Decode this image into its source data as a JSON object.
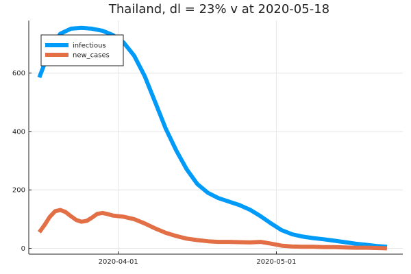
{
  "chart_data": {
    "type": "line",
    "title": "Thailand,  dl = 23% v at 2020-05-18",
    "xlabel": "",
    "ylabel": "",
    "x_start": "2020-03-17",
    "x_end": "2020-05-23",
    "xlim": [
      "2020-03-15",
      "2020-05-25"
    ],
    "ylim": [
      -20,
      780
    ],
    "x_ticks": [
      "2020-04-01",
      "2020-05-01"
    ],
    "y_ticks": [
      0,
      200,
      400,
      600
    ],
    "grid": true,
    "legend_position": "top-left",
    "series": [
      {
        "name": "infectious",
        "color": "#009af9",
        "points": [
          [
            "2020-03-17",
            585
          ],
          [
            "2020-03-19",
            680
          ],
          [
            "2020-03-21",
            735
          ],
          [
            "2020-03-23",
            752
          ],
          [
            "2020-03-25",
            755
          ],
          [
            "2020-03-27",
            752
          ],
          [
            "2020-03-29",
            745
          ],
          [
            "2020-03-31",
            730
          ],
          [
            "2020-04-02",
            705
          ],
          [
            "2020-04-04",
            660
          ],
          [
            "2020-04-06",
            590
          ],
          [
            "2020-04-08",
            500
          ],
          [
            "2020-04-10",
            410
          ],
          [
            "2020-04-12",
            335
          ],
          [
            "2020-04-14",
            270
          ],
          [
            "2020-04-16",
            220
          ],
          [
            "2020-04-18",
            190
          ],
          [
            "2020-04-20",
            172
          ],
          [
            "2020-04-22",
            160
          ],
          [
            "2020-04-24",
            148
          ],
          [
            "2020-04-26",
            132
          ],
          [
            "2020-04-28",
            110
          ],
          [
            "2020-04-30",
            85
          ],
          [
            "2020-05-02",
            62
          ],
          [
            "2020-05-04",
            48
          ],
          [
            "2020-05-06",
            40
          ],
          [
            "2020-05-08",
            35
          ],
          [
            "2020-05-10",
            31
          ],
          [
            "2020-05-12",
            26
          ],
          [
            "2020-05-14",
            21
          ],
          [
            "2020-05-16",
            16
          ],
          [
            "2020-05-18",
            12
          ],
          [
            "2020-05-20",
            8
          ],
          [
            "2020-05-22",
            5
          ]
        ]
      },
      {
        "name": "new_cases",
        "color": "#e26f46",
        "points": [
          [
            "2020-03-17",
            55
          ],
          [
            "2020-03-18",
            80
          ],
          [
            "2020-03-19",
            108
          ],
          [
            "2020-03-20",
            127
          ],
          [
            "2020-03-21",
            131
          ],
          [
            "2020-03-22",
            124
          ],
          [
            "2020-03-23",
            110
          ],
          [
            "2020-03-24",
            97
          ],
          [
            "2020-03-25",
            91
          ],
          [
            "2020-03-26",
            94
          ],
          [
            "2020-03-27",
            105
          ],
          [
            "2020-03-28",
            118
          ],
          [
            "2020-03-29",
            121
          ],
          [
            "2020-03-30",
            117
          ],
          [
            "2020-03-31",
            112
          ],
          [
            "2020-04-02",
            108
          ],
          [
            "2020-04-04",
            100
          ],
          [
            "2020-04-06",
            85
          ],
          [
            "2020-04-08",
            68
          ],
          [
            "2020-04-10",
            53
          ],
          [
            "2020-04-12",
            42
          ],
          [
            "2020-04-14",
            33
          ],
          [
            "2020-04-16",
            28
          ],
          [
            "2020-04-18",
            24
          ],
          [
            "2020-04-20",
            22
          ],
          [
            "2020-04-22",
            22
          ],
          [
            "2020-04-24",
            21
          ],
          [
            "2020-04-26",
            20
          ],
          [
            "2020-04-28",
            22
          ],
          [
            "2020-04-30",
            16
          ],
          [
            "2020-05-02",
            9
          ],
          [
            "2020-05-04",
            6
          ],
          [
            "2020-05-06",
            5
          ],
          [
            "2020-05-08",
            5
          ],
          [
            "2020-05-10",
            4
          ],
          [
            "2020-05-12",
            4
          ],
          [
            "2020-05-14",
            3
          ],
          [
            "2020-05-16",
            2
          ],
          [
            "2020-05-18",
            2
          ],
          [
            "2020-05-20",
            1
          ],
          [
            "2020-05-22",
            0
          ]
        ]
      }
    ]
  }
}
